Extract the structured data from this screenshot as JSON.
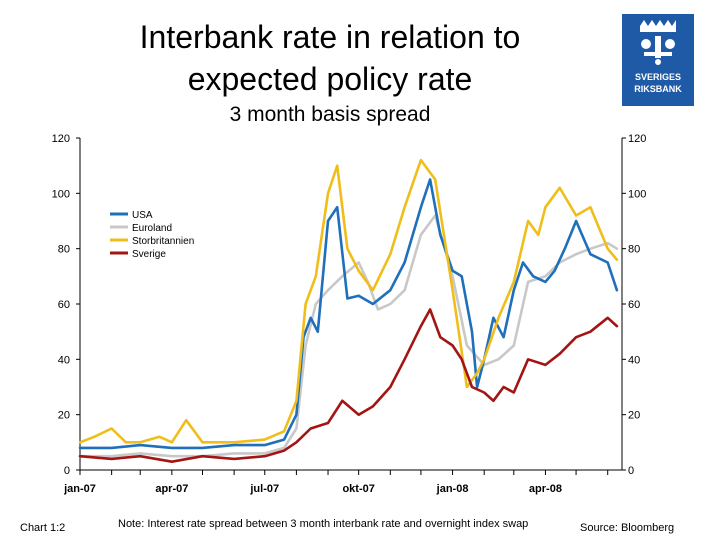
{
  "header": {
    "title_line1": "Interbank rate in relation to",
    "title_line2": "expected policy rate",
    "subtitle": "3 month basis spread",
    "logo_text_line1": "SVERIGES",
    "logo_text_line2": "RIKSBANK"
  },
  "footer": {
    "chart_number": "Chart 1:2",
    "note": "Note: Interest rate spread between 3 month interbank rate and overnight index swap",
    "source": "Source: Bloomberg"
  },
  "colors": {
    "usa": "#1f6fba",
    "euroland": "#c8c8c8",
    "storbritannien": "#f0be1a",
    "sverige": "#a31515",
    "logo": "#1f5aa6"
  },
  "chart_data": {
    "type": "line",
    "title": "3 month basis spread",
    "x_tick_labels": [
      "jan-07",
      "apr-07",
      "jul-07",
      "okt-07",
      "jan-08",
      "apr-08"
    ],
    "x_range": [
      "2007-01-01",
      "2008-06-15"
    ],
    "ylim": [
      0,
      120
    ],
    "y_ticks": [
      0,
      20,
      40,
      60,
      80,
      100,
      120
    ],
    "y_axis_both_sides": true,
    "legend_position": "upper-left",
    "grid": false,
    "series": [
      {
        "name": "USA",
        "points": [
          [
            "2007-01-01",
            8
          ],
          [
            "2007-02-01",
            8
          ],
          [
            "2007-03-01",
            9
          ],
          [
            "2007-04-01",
            8
          ],
          [
            "2007-05-01",
            8
          ],
          [
            "2007-06-01",
            9
          ],
          [
            "2007-07-01",
            9
          ],
          [
            "2007-07-20",
            11
          ],
          [
            "2007-08-01",
            20
          ],
          [
            "2007-08-08",
            48
          ],
          [
            "2007-08-15",
            55
          ],
          [
            "2007-08-22",
            50
          ],
          [
            "2007-09-01",
            90
          ],
          [
            "2007-09-10",
            95
          ],
          [
            "2007-09-20",
            62
          ],
          [
            "2007-10-01",
            63
          ],
          [
            "2007-10-15",
            60
          ],
          [
            "2007-11-01",
            65
          ],
          [
            "2007-11-15",
            75
          ],
          [
            "2007-12-01",
            95
          ],
          [
            "2007-12-10",
            105
          ],
          [
            "2007-12-20",
            85
          ],
          [
            "2008-01-01",
            72
          ],
          [
            "2008-01-10",
            70
          ],
          [
            "2008-01-20",
            50
          ],
          [
            "2008-01-25",
            30
          ],
          [
            "2008-02-01",
            40
          ],
          [
            "2008-02-10",
            55
          ],
          [
            "2008-02-20",
            48
          ],
          [
            "2008-03-01",
            65
          ],
          [
            "2008-03-10",
            75
          ],
          [
            "2008-03-20",
            70
          ],
          [
            "2008-04-01",
            68
          ],
          [
            "2008-04-10",
            72
          ],
          [
            "2008-04-20",
            80
          ],
          [
            "2008-05-01",
            90
          ],
          [
            "2008-05-15",
            78
          ],
          [
            "2008-06-01",
            75
          ],
          [
            "2008-06-10",
            65
          ]
        ]
      },
      {
        "name": "Euroland",
        "points": [
          [
            "2007-01-01",
            5
          ],
          [
            "2007-02-01",
            5
          ],
          [
            "2007-03-01",
            6
          ],
          [
            "2007-04-01",
            5
          ],
          [
            "2007-05-01",
            5
          ],
          [
            "2007-06-01",
            6
          ],
          [
            "2007-07-01",
            6
          ],
          [
            "2007-07-20",
            8
          ],
          [
            "2007-08-01",
            15
          ],
          [
            "2007-08-10",
            45
          ],
          [
            "2007-08-20",
            60
          ],
          [
            "2007-09-01",
            65
          ],
          [
            "2007-09-15",
            70
          ],
          [
            "2007-10-01",
            75
          ],
          [
            "2007-10-10",
            68
          ],
          [
            "2007-10-20",
            58
          ],
          [
            "2007-11-01",
            60
          ],
          [
            "2007-11-15",
            65
          ],
          [
            "2007-12-01",
            85
          ],
          [
            "2007-12-15",
            92
          ],
          [
            "2008-01-01",
            70
          ],
          [
            "2008-01-15",
            45
          ],
          [
            "2008-02-01",
            38
          ],
          [
            "2008-02-15",
            40
          ],
          [
            "2008-03-01",
            45
          ],
          [
            "2008-03-15",
            68
          ],
          [
            "2008-04-01",
            70
          ],
          [
            "2008-04-15",
            75
          ],
          [
            "2008-05-01",
            78
          ],
          [
            "2008-05-15",
            80
          ],
          [
            "2008-06-01",
            82
          ],
          [
            "2008-06-10",
            80
          ]
        ]
      },
      {
        "name": "Storbritannien",
        "points": [
          [
            "2007-01-01",
            10
          ],
          [
            "2007-01-15",
            12
          ],
          [
            "2007-02-01",
            15
          ],
          [
            "2007-02-15",
            10
          ],
          [
            "2007-03-01",
            10
          ],
          [
            "2007-03-20",
            12
          ],
          [
            "2007-04-01",
            10
          ],
          [
            "2007-04-15",
            18
          ],
          [
            "2007-05-01",
            10
          ],
          [
            "2007-06-01",
            10
          ],
          [
            "2007-07-01",
            11
          ],
          [
            "2007-07-20",
            14
          ],
          [
            "2007-08-01",
            25
          ],
          [
            "2007-08-10",
            60
          ],
          [
            "2007-08-20",
            70
          ],
          [
            "2007-09-01",
            100
          ],
          [
            "2007-09-10",
            110
          ],
          [
            "2007-09-20",
            80
          ],
          [
            "2007-10-01",
            72
          ],
          [
            "2007-10-15",
            65
          ],
          [
            "2007-11-01",
            78
          ],
          [
            "2007-11-15",
            95
          ],
          [
            "2007-12-01",
            112
          ],
          [
            "2007-12-15",
            105
          ],
          [
            "2008-01-01",
            65
          ],
          [
            "2008-01-15",
            30
          ],
          [
            "2008-01-25",
            35
          ],
          [
            "2008-02-01",
            40
          ],
          [
            "2008-02-15",
            55
          ],
          [
            "2008-03-01",
            68
          ],
          [
            "2008-03-15",
            90
          ],
          [
            "2008-03-25",
            85
          ],
          [
            "2008-04-01",
            95
          ],
          [
            "2008-04-15",
            102
          ],
          [
            "2008-05-01",
            92
          ],
          [
            "2008-05-15",
            95
          ],
          [
            "2008-06-01",
            80
          ],
          [
            "2008-06-10",
            76
          ]
        ]
      },
      {
        "name": "Sverige",
        "points": [
          [
            "2007-01-01",
            5
          ],
          [
            "2007-02-01",
            4
          ],
          [
            "2007-03-01",
            5
          ],
          [
            "2007-04-01",
            3
          ],
          [
            "2007-05-01",
            5
          ],
          [
            "2007-06-01",
            4
          ],
          [
            "2007-07-01",
            5
          ],
          [
            "2007-07-20",
            7
          ],
          [
            "2007-08-01",
            10
          ],
          [
            "2007-08-15",
            15
          ],
          [
            "2007-09-01",
            17
          ],
          [
            "2007-09-15",
            25
          ],
          [
            "2007-10-01",
            20
          ],
          [
            "2007-10-15",
            23
          ],
          [
            "2007-11-01",
            30
          ],
          [
            "2007-11-15",
            40
          ],
          [
            "2007-12-01",
            52
          ],
          [
            "2007-12-10",
            58
          ],
          [
            "2007-12-20",
            48
          ],
          [
            "2008-01-01",
            45
          ],
          [
            "2008-01-10",
            40
          ],
          [
            "2008-01-20",
            30
          ],
          [
            "2008-02-01",
            28
          ],
          [
            "2008-02-10",
            25
          ],
          [
            "2008-02-20",
            30
          ],
          [
            "2008-03-01",
            28
          ],
          [
            "2008-03-15",
            40
          ],
          [
            "2008-04-01",
            38
          ],
          [
            "2008-04-15",
            42
          ],
          [
            "2008-05-01",
            48
          ],
          [
            "2008-05-15",
            50
          ],
          [
            "2008-06-01",
            55
          ],
          [
            "2008-06-10",
            52
          ]
        ]
      }
    ]
  }
}
